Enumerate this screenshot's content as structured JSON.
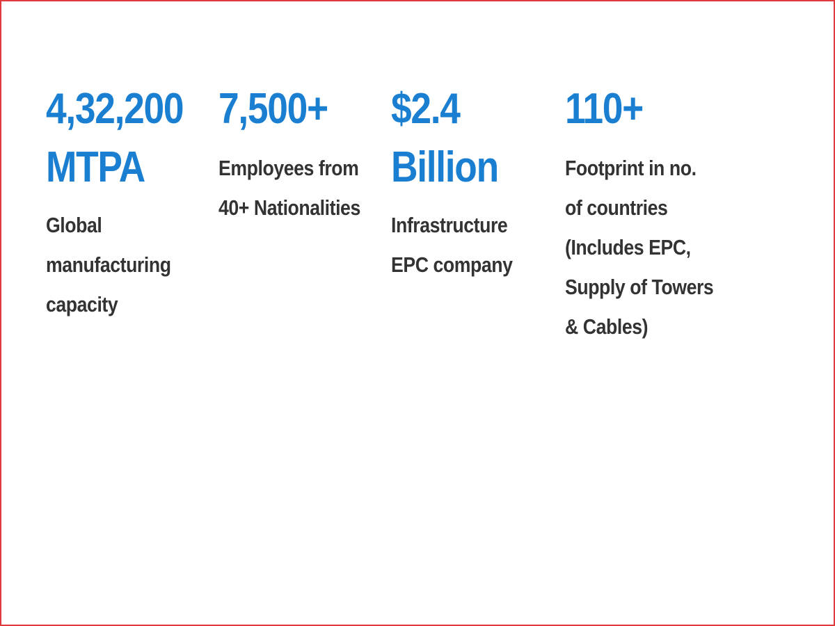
{
  "stats": [
    {
      "value_lines": [
        "4,32,200",
        "MTPA"
      ],
      "desc_lines": [
        "Global",
        "manufacturing",
        "capacity"
      ]
    },
    {
      "value_lines": [
        "7,500+"
      ],
      "desc_lines": [
        "Employees from",
        "40+ Nationalities"
      ]
    },
    {
      "value_lines": [
        "$2.4",
        "Billion"
      ],
      "desc_lines": [
        "Infrastructure",
        "EPC company"
      ]
    },
    {
      "value_lines": [
        "110+"
      ],
      "desc_lines": [
        "Footprint in no.",
        "of countries",
        "(Includes EPC,",
        "Supply of Towers",
        "& Cables)"
      ]
    }
  ],
  "colors": {
    "value": "#1b7fd1",
    "description": "#333333",
    "border": "#e0393e"
  }
}
